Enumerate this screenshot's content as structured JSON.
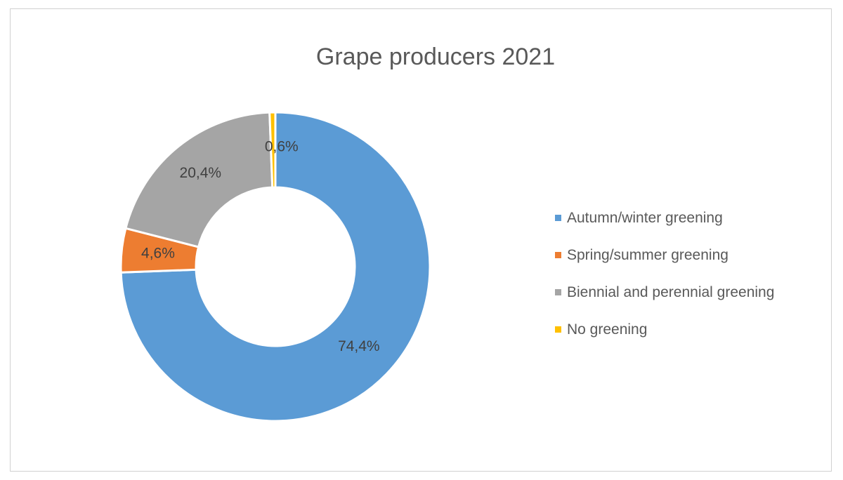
{
  "chart_data": {
    "type": "pie",
    "variant": "doughnut",
    "title": "Grape producers 2021",
    "categories": [
      "Autumn/winter greening",
      "Spring/summer greening",
      "Biennial and perennial greening",
      "No greening"
    ],
    "values": [
      74.4,
      4.6,
      20.4,
      0.6
    ],
    "data_labels": [
      "74,4%",
      "4,6%",
      "20,4%",
      "0,6%"
    ],
    "colors": [
      "#5b9bd5",
      "#ed7d31",
      "#a5a5a5",
      "#ffc000"
    ],
    "legend_position": "right"
  }
}
